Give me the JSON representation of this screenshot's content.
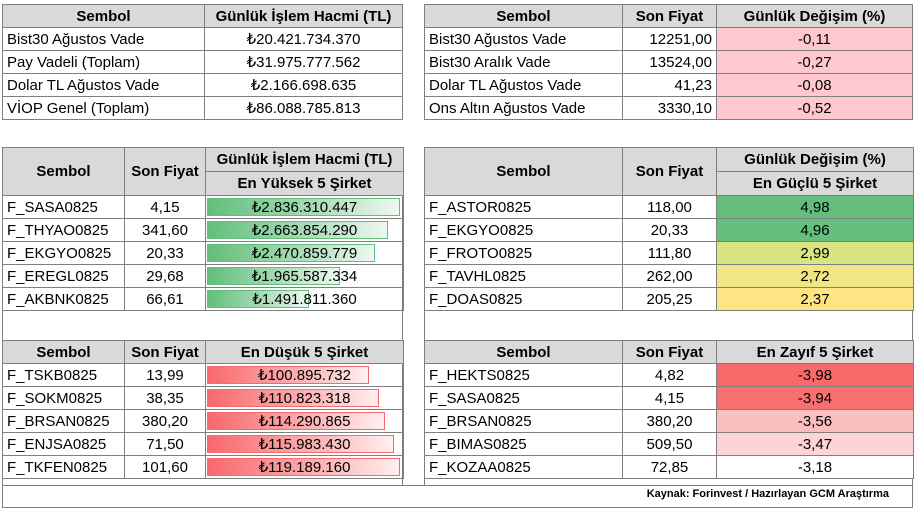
{
  "top_left": {
    "headers": [
      "Sembol",
      "Günlük İşlem Hacmi (TL)"
    ],
    "rows": [
      {
        "symbol": "Bist30 Ağustos Vade",
        "volume": "₺20.421.734.370"
      },
      {
        "symbol": "Pay Vadeli (Toplam)",
        "volume": "₺31.975.777.562"
      },
      {
        "symbol": "Dolar TL Ağustos Vade",
        "volume": "₺2.166.698.635"
      },
      {
        "symbol": "VİOP Genel (Toplam)",
        "volume": "₺86.088.785.813"
      }
    ]
  },
  "top_right": {
    "headers": [
      "Sembol",
      "Son Fiyat",
      "Günlük Değişim (%)"
    ],
    "rows": [
      {
        "symbol": "Bist30 Ağustos Vade",
        "price": "12251,00",
        "change": "-0,11"
      },
      {
        "symbol": "Bist30 Aralık Vade",
        "price": "13524,00",
        "change": "-0,27"
      },
      {
        "symbol": "Dolar TL Ağustos Vade",
        "price": "41,23",
        "change": "-0,08"
      },
      {
        "symbol": "Ons Altın Ağustos Vade",
        "price": "3330,10",
        "change": "-0,52"
      }
    ]
  },
  "mid_left": {
    "headers": [
      "Sembol",
      "Son Fiyat",
      "Günlük İşlem Hacmi (TL)"
    ],
    "subheader": "En Yüksek 5 Şirket",
    "bar_color": "#63be7b",
    "rows": [
      {
        "symbol": "F_SASA0825",
        "price": "4,15",
        "volume": "₺2.836.310.447",
        "fill": 1.0
      },
      {
        "symbol": "F_THYAO0825",
        "price": "341,60",
        "volume": "₺2.663.854.290",
        "fill": 0.94
      },
      {
        "symbol": "F_EKGYO0825",
        "price": "20,33",
        "volume": "₺2.470.859.779",
        "fill": 0.87
      },
      {
        "symbol": "F_EREGL0825",
        "price": "29,68",
        "volume": "₺1.965.587.334",
        "fill": 0.69
      },
      {
        "symbol": "F_AKBNK0825",
        "price": "66,61",
        "volume": "₺1.491.811.360",
        "fill": 0.53
      }
    ]
  },
  "mid_right": {
    "headers": [
      "Sembol",
      "Son Fiyat",
      "Günlük Değişim (%)"
    ],
    "subheader": "En Güçlü 5 Şirket",
    "rows": [
      {
        "symbol": "F_ASTOR0825",
        "price": "118,00",
        "change": "4,98",
        "color": "#63be7b"
      },
      {
        "symbol": "F_EKGYO0825",
        "price": "20,33",
        "change": "4,96",
        "color": "#65bf7c"
      },
      {
        "symbol": "F_FROTO0825",
        "price": "111,80",
        "change": "2,99",
        "color": "#d9e582"
      },
      {
        "symbol": "F_TAVHL0825",
        "price": "262,00",
        "change": "2,72",
        "color": "#f1e684"
      },
      {
        "symbol": "F_DOAS0825",
        "price": "205,25",
        "change": "2,37",
        "color": "#ffe484"
      }
    ]
  },
  "bot_left": {
    "headers": [
      "Sembol",
      "Son Fiyat",
      "En Düşük 5 Şirket"
    ],
    "bar_color": "#f8696b",
    "rows": [
      {
        "symbol": "F_TSKB0825",
        "price": "13,99",
        "volume": "₺100.895.732",
        "fill": 0.84
      },
      {
        "symbol": "F_SOKM0825",
        "price": "38,35",
        "volume": "₺110.823.318",
        "fill": 0.89
      },
      {
        "symbol": "F_BRSAN0825",
        "price": "380,20",
        "volume": "₺114.290.865",
        "fill": 0.92
      },
      {
        "symbol": "F_ENJSA0825",
        "price": "71,50",
        "volume": "₺115.983.430",
        "fill": 0.97
      },
      {
        "symbol": "F_TKFEN0825",
        "price": "101,60",
        "volume": "₺119.189.160",
        "fill": 1.0
      }
    ]
  },
  "bot_right": {
    "headers": [
      "Sembol",
      "Son Fiyat",
      "En Zayıf 5 Şirket"
    ],
    "rows": [
      {
        "symbol": "F_HEKTS0825",
        "price": "4,82",
        "change": "-3,98",
        "color": "#f8696b"
      },
      {
        "symbol": "F_SASA0825",
        "price": "4,15",
        "change": "-3,94",
        "color": "#f8706f"
      },
      {
        "symbol": "F_BRSAN0825",
        "price": "380,20",
        "change": "-3,56",
        "color": "#fcbfc0"
      },
      {
        "symbol": "F_BIMAS0825",
        "price": "509,50",
        "change": "-3,47",
        "color": "#fdd3d4"
      },
      {
        "symbol": "F_KOZAA0825",
        "price": "72,85",
        "change": "-3,18",
        "color": "#ffffff"
      }
    ]
  },
  "source": "Kaynak: Forinvest / Hazırlayan GCM Araştırma"
}
